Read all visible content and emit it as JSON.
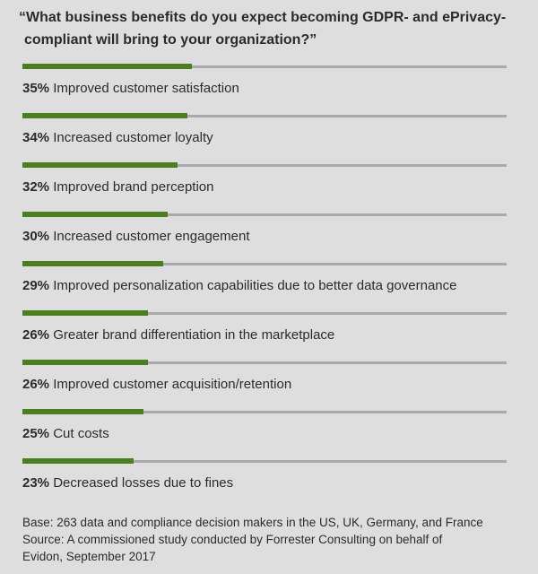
{
  "chart_data": {
    "type": "bar",
    "orientation": "horizontal",
    "title": "“What business benefits do you expect becoming GDPR- and ePrivacy-compliant will bring to your organization?”",
    "xlim": [
      0,
      100
    ],
    "unit": "%",
    "categories": [
      "Improved customer satisfaction",
      "Increased customer loyalty",
      "Improved brand perception",
      "Increased customer engagement",
      "Improved personalization capabilities due to better data governance",
      "Greater brand differentiation in the marketplace",
      "Improved customer acquisition/retention",
      "Cut costs",
      "Decreased losses due to fines"
    ],
    "values": [
      35,
      34,
      32,
      30,
      29,
      26,
      26,
      25,
      23
    ],
    "colors": {
      "fill": "#4a7f1e",
      "track": "#a9a9a9",
      "background": "#dedede"
    }
  },
  "footer": {
    "base": "Base: 263 data and compliance decision makers in the US, UK, Germany, and France",
    "source_line1": "Source: A commissioned study conducted by Forrester Consulting on behalf of",
    "source_line2": "Evidon, September 2017"
  }
}
